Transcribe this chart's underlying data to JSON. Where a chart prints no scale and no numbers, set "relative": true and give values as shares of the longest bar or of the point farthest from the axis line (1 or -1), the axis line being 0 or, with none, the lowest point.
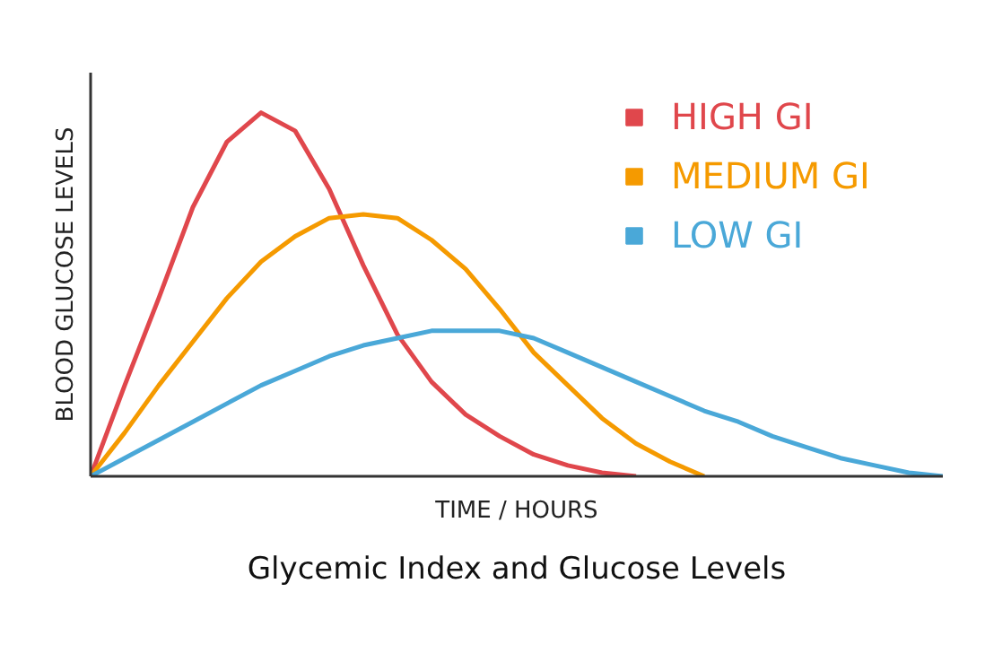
{
  "chart_data": {
    "type": "line",
    "relative": true,
    "title": "Glycemic Index and Glucose Levels",
    "xlabel": "TIME / HOURS",
    "ylabel": "BLOOD GLUCOSE LEVELS",
    "categories": [
      null,
      null,
      null,
      null,
      null,
      null,
      null,
      null,
      null,
      null,
      null,
      null,
      null,
      null,
      null,
      null,
      null,
      null,
      null,
      null,
      null,
      null,
      null,
      null,
      null,
      null
    ],
    "legend": "top right",
    "grid": false,
    "marker": "none",
    "line_style": "solid",
    "series": [
      {
        "name": "HIGH GI",
        "color": "#e0474c",
        "values": [
          0,
          0.25,
          0.49,
          0.74,
          0.92,
          1.0,
          0.95,
          0.79,
          0.58,
          0.39,
          0.26,
          0.17,
          0.11,
          0.06,
          0.03,
          0.01,
          0,
          null,
          null,
          null,
          null,
          null,
          null,
          null,
          null,
          null
        ]
      },
      {
        "name": "MEDIUM GI",
        "color": "#f59a00",
        "values": [
          0,
          0.12,
          0.25,
          0.37,
          0.49,
          0.59,
          0.66,
          0.71,
          0.72,
          0.71,
          0.65,
          0.57,
          0.46,
          0.34,
          0.25,
          0.16,
          0.09,
          0.04,
          0,
          null,
          null,
          null,
          null,
          null,
          null,
          null
        ]
      },
      {
        "name": "LOW GI",
        "color": "#4aa8d8",
        "values": [
          0,
          0.05,
          0.1,
          0.15,
          0.2,
          0.25,
          0.29,
          0.33,
          0.36,
          0.38,
          0.4,
          0.4,
          0.4,
          0.38,
          0.34,
          0.3,
          0.26,
          0.22,
          0.18,
          0.15,
          0.11,
          0.08,
          0.05,
          0.03,
          0.01,
          0
        ]
      }
    ]
  }
}
